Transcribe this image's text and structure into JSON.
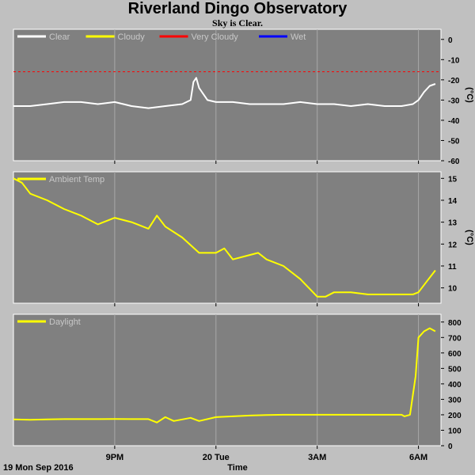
{
  "title": "Riverland Dingo Observatory",
  "subtitle": "Sky is Clear.",
  "footer": {
    "date": "19 Mon Sep 2016",
    "xlabel": "Time"
  },
  "colors": {
    "panel": "#808080",
    "page": "#c0c0c0",
    "grid": "#a8a8a8",
    "clear": "#ffffff",
    "cloudy": "#ffff00",
    "very_cloudy": "#ff0000",
    "wet": "#0000ff",
    "series": "#ffff00"
  },
  "chart_data": [
    {
      "type": "line",
      "legend": [
        {
          "name": "Clear",
          "color": "#ffffff"
        },
        {
          "name": "Cloudy",
          "color": "#ffff00"
        },
        {
          "name": "Very Cloudy",
          "color": "#ff0000"
        },
        {
          "name": "Wet",
          "color": "#0000ff"
        }
      ],
      "ylabel": "(°C)",
      "ylim": [
        -60,
        5
      ],
      "yticks": [
        0,
        -10,
        -20,
        -30,
        -40,
        -50,
        -60
      ],
      "threshold": {
        "y": -16,
        "color": "#ff0000",
        "style": "dashed"
      },
      "x": [
        "18:00",
        "18:30",
        "19:00",
        "19:30",
        "20:00",
        "20:30",
        "21:00",
        "21:30",
        "22:00",
        "22:30",
        "23:00",
        "23:15",
        "23:20",
        "23:25",
        "23:30",
        "23:45",
        "00:00",
        "00:30",
        "01:00",
        "01:30",
        "02:00",
        "02:30",
        "03:00",
        "03:30",
        "04:00",
        "04:30",
        "05:00",
        "05:30",
        "05:50",
        "06:00",
        "06:10",
        "06:20",
        "06:30"
      ],
      "series": [
        {
          "name": "Clear",
          "color": "#ffffff",
          "values": [
            -33,
            -33,
            -32,
            -31,
            -31,
            -32,
            -31,
            -33,
            -34,
            -33,
            -32,
            -30,
            -21,
            -19,
            -24,
            -30,
            -31,
            -31,
            -32,
            -32,
            -32,
            -31,
            -32,
            -32,
            -33,
            -32,
            -33,
            -33,
            -32,
            -30,
            -26,
            -23,
            -22
          ]
        }
      ]
    },
    {
      "type": "line",
      "legend": [
        {
          "name": "Ambient Temp",
          "color": "#ffff00"
        }
      ],
      "ylabel": "(°C)",
      "ylim": [
        9.3,
        15.3
      ],
      "yticks": [
        15,
        14,
        13,
        12,
        11,
        10
      ],
      "x": [
        "18:00",
        "18:15",
        "18:30",
        "19:00",
        "19:30",
        "20:00",
        "20:30",
        "21:00",
        "21:30",
        "22:00",
        "22:15",
        "22:30",
        "23:00",
        "23:30",
        "00:00",
        "00:15",
        "00:30",
        "01:00",
        "01:15",
        "01:30",
        "02:00",
        "02:30",
        "02:45",
        "03:00",
        "03:15",
        "03:30",
        "04:00",
        "04:30",
        "05:00",
        "05:30",
        "05:50",
        "06:00",
        "06:15",
        "06:30"
      ],
      "series": [
        {
          "name": "Ambient Temp",
          "color": "#ffff00",
          "values": [
            15.0,
            14.8,
            14.3,
            14.0,
            13.6,
            13.3,
            12.9,
            13.2,
            13.0,
            12.7,
            13.3,
            12.8,
            12.3,
            11.6,
            11.6,
            11.8,
            11.3,
            11.5,
            11.6,
            11.3,
            11.0,
            10.4,
            10.0,
            9.6,
            9.6,
            9.8,
            9.8,
            9.7,
            9.7,
            9.7,
            9.7,
            9.8,
            10.3,
            10.8
          ]
        }
      ]
    },
    {
      "type": "line",
      "legend": [
        {
          "name": "Daylight",
          "color": "#ffff00"
        }
      ],
      "ylim": [
        0,
        850
      ],
      "yticks": [
        800,
        700,
        600,
        500,
        400,
        300,
        200,
        100,
        0
      ],
      "xticks": [
        "9PM",
        "20 Tue",
        "3AM",
        "6AM"
      ],
      "x": [
        "18:00",
        "18:30",
        "19:00",
        "19:30",
        "20:00",
        "20:30",
        "21:00",
        "21:30",
        "22:00",
        "22:15",
        "22:30",
        "22:45",
        "23:00",
        "23:15",
        "23:30",
        "00:00",
        "00:30",
        "01:00",
        "01:30",
        "02:00",
        "02:30",
        "03:00",
        "03:30",
        "04:00",
        "04:30",
        "05:00",
        "05:30",
        "05:35",
        "05:45",
        "05:55",
        "06:00",
        "06:10",
        "06:20",
        "06:30"
      ],
      "series": [
        {
          "name": "Daylight",
          "color": "#ffff00",
          "values": [
            170,
            168,
            170,
            172,
            172,
            172,
            173,
            172,
            172,
            150,
            185,
            160,
            170,
            180,
            160,
            185,
            190,
            195,
            198,
            200,
            200,
            200,
            200,
            200,
            200,
            200,
            200,
            190,
            200,
            450,
            700,
            740,
            760,
            740
          ]
        }
      ]
    }
  ]
}
